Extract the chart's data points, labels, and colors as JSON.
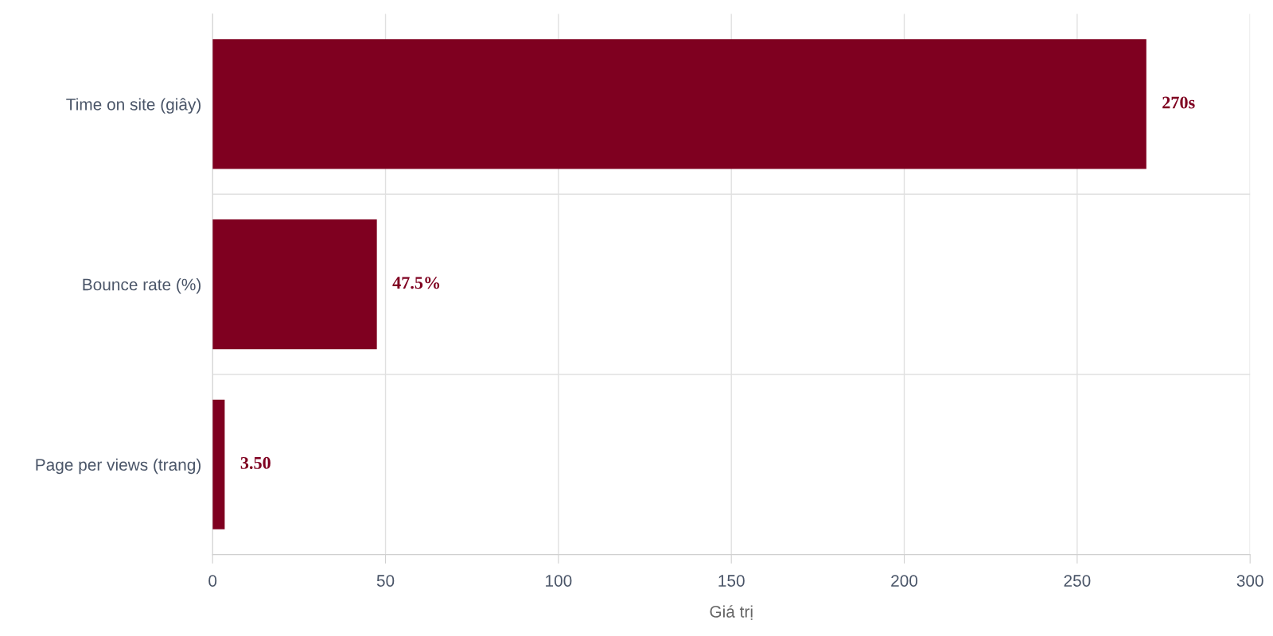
{
  "chart_data": {
    "type": "bar",
    "orientation": "horizontal",
    "categories": [
      "Time on site (giây)",
      "Bounce rate (%)",
      "Page per views (trang)"
    ],
    "values": [
      270,
      47.5,
      3.5
    ],
    "value_labels": [
      "270s",
      "47.5%",
      "3.50"
    ],
    "color": "#7f0020",
    "xlabel": "Giá trị",
    "xlim": [
      0,
      300
    ],
    "xticks": [
      0,
      50,
      100,
      150,
      200,
      250,
      300
    ],
    "grid": true
  }
}
